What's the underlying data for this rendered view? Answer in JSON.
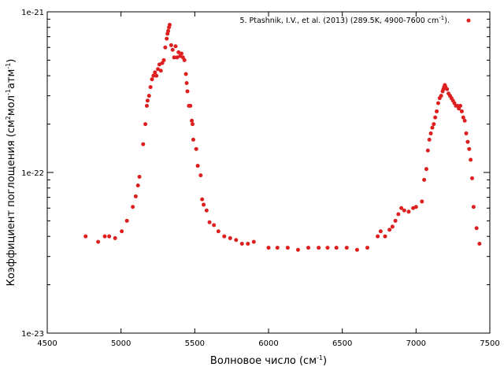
{
  "chart_data": {
    "type": "scatter",
    "xlabel_main": "Волновое число (см",
    "xlabel_sup": "-1",
    "xlabel_end": ")",
    "ylabel_parts": [
      "Коэффициент поглощения (см",
      "2",
      "мол",
      "-1",
      "атм",
      "-1",
      ")"
    ],
    "xlim": [
      4500,
      7500
    ],
    "ylim": [
      1e-23,
      1e-21
    ],
    "yscale": "log",
    "x_ticks": [
      4500,
      5000,
      5500,
      6000,
      6500,
      7000,
      7500
    ],
    "x_tick_labels": [
      "4500",
      "5000",
      "5500",
      "6000",
      "6500",
      "7000",
      "7500"
    ],
    "y_ticks": [
      1e-23,
      1e-22,
      1e-21
    ],
    "y_tick_labels": [
      "1e-23",
      "1e-22",
      "1e-21"
    ],
    "grid": false,
    "legend_position": "top-right",
    "legend_main": "5. Ptashnik, I.V., et al. (2013) (289.5K, 4900-7600 cm",
    "legend_sup": "-1",
    "legend_end": ").",
    "series_color": "#dd1f1f",
    "series": [
      {
        "x": [
          4760,
          4845,
          4890,
          4920,
          4960,
          5005,
          5040,
          5080,
          5100,
          5115,
          5125,
          5150,
          5165,
          5175,
          5180,
          5190,
          5200,
          5210,
          5220,
          5230,
          5240,
          5250,
          5260,
          5270,
          5280,
          5290,
          5300,
          5310,
          5315,
          5320,
          5325,
          5330,
          5340,
          5350,
          5360,
          5370,
          5380,
          5390,
          5400,
          5410,
          5420,
          5430,
          5440,
          5445,
          5450,
          5460,
          5470,
          5480,
          5485,
          5490,
          5510,
          5520,
          5540,
          5550,
          5560,
          5580,
          5600,
          5630,
          5660,
          5700,
          5740,
          5780,
          5820,
          5860,
          5900,
          6000,
          6060,
          6130,
          6200,
          6270,
          6340,
          6400,
          6460,
          6530,
          6600,
          6670,
          6740,
          6760,
          6790,
          6820,
          6840,
          6860,
          6880,
          6900,
          6920,
          6950,
          6980,
          7000,
          7040,
          7055,
          7070,
          7080,
          7090,
          7100,
          7110,
          7120,
          7130,
          7140,
          7150,
          7160,
          7170,
          7180,
          7185,
          7190,
          7195,
          7200,
          7210,
          7220,
          7230,
          7240,
          7250,
          7260,
          7270,
          7280,
          7290,
          7300,
          7310,
          7320,
          7330,
          7340,
          7350,
          7360,
          7370,
          7380,
          7390,
          7410,
          7430
        ],
        "y": [
          4e-23,
          3.7e-23,
          4e-23,
          4e-23,
          3.9e-23,
          4.3e-23,
          5e-23,
          6.1e-23,
          7.1e-23,
          8.3e-23,
          9.4e-23,
          1.5e-22,
          2e-22,
          2.6e-22,
          2.8e-22,
          3e-22,
          3.4e-22,
          3.8e-22,
          4e-22,
          4.2e-22,
          4e-22,
          4.4e-22,
          4.7e-22,
          4.3e-22,
          4.8e-22,
          5e-22,
          6e-22,
          6.8e-22,
          7.3e-22,
          7.6e-22,
          8e-22,
          8.3e-22,
          6.2e-22,
          5.8e-22,
          5.2e-22,
          6.1e-22,
          5.2e-22,
          5.6e-22,
          5.3e-22,
          5.5e-22,
          5.2e-22,
          5e-22,
          4.1e-22,
          3.6e-22,
          3.2e-22,
          2.6e-22,
          2.6e-22,
          2.1e-22,
          2e-22,
          1.6e-22,
          1.4e-22,
          1.1e-22,
          9.6e-23,
          6.8e-23,
          6.3e-23,
          5.8e-23,
          4.9e-23,
          4.7e-23,
          4.3e-23,
          4e-23,
          3.9e-23,
          3.8e-23,
          3.6e-23,
          3.6e-23,
          3.7e-23,
          3.4e-23,
          3.4e-23,
          3.4e-23,
          3.3e-23,
          3.4e-23,
          3.4e-23,
          3.4e-23,
          3.4e-23,
          3.4e-23,
          3.3e-23,
          3.4e-23,
          4e-23,
          4.3e-23,
          4e-23,
          4.4e-23,
          4.6e-23,
          5e-23,
          5.5e-23,
          6e-23,
          5.8e-23,
          5.7e-23,
          6e-23,
          6.1e-23,
          6.6e-23,
          9e-23,
          1.05e-22,
          1.37e-22,
          1.6e-22,
          1.75e-22,
          1.9e-22,
          2e-22,
          2.2e-22,
          2.4e-22,
          2.7e-22,
          2.9e-22,
          3e-22,
          3.2e-22,
          3.3e-22,
          3.4e-22,
          3.5e-22,
          3.4e-22,
          3.3e-22,
          3.1e-22,
          3e-22,
          2.9e-22,
          2.8e-22,
          2.7e-22,
          2.6e-22,
          2.6e-22,
          2.5e-22,
          2.6e-22,
          2.4e-22,
          2.2e-22,
          2.1e-22,
          1.75e-22,
          1.55e-22,
          1.4e-22,
          1.2e-22,
          9.2e-23,
          6.1e-23,
          4.5e-23,
          3.6e-23
        ]
      }
    ]
  }
}
